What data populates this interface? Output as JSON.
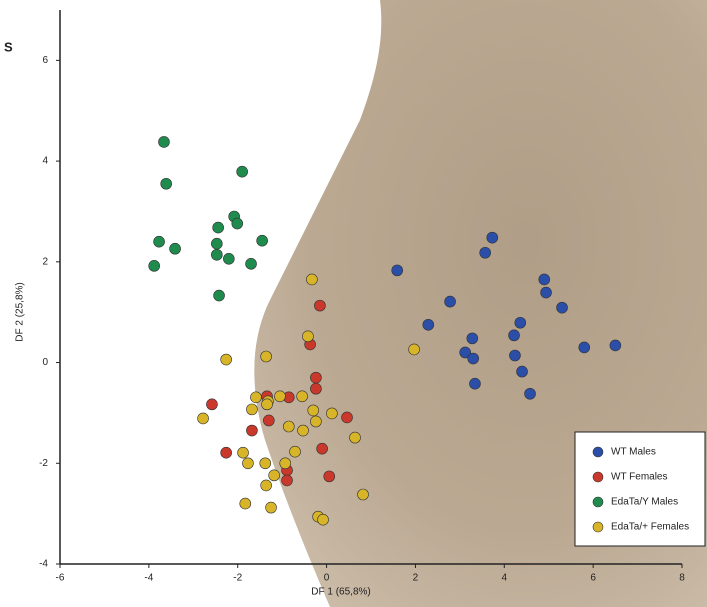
{
  "chart_data": {
    "type": "scatter",
    "panel_label": "S",
    "x_label": "DF 1 (65,8%)",
    "y_label": "DF 2 (25,8%)",
    "xlim": [
      -6,
      8
    ],
    "xticks": [
      -6,
      -4,
      -2,
      0,
      2,
      4,
      6,
      8
    ],
    "ylim": [
      -4,
      7
    ],
    "yticks": [
      -4,
      -2,
      0,
      2,
      4,
      6
    ],
    "legend": "lower right",
    "series": [
      {
        "name": "WT Males",
        "color": "#2b4ea8",
        "x": [
          1.59,
          3.73,
          3.57,
          2.78,
          2.29,
          3.28,
          3.12,
          3.3,
          3.34,
          4.36,
          4.22,
          4.24,
          4.4,
          4.58,
          4.9,
          4.94,
          5.3,
          5.8,
          6.5
        ],
        "y": [
          1.83,
          2.48,
          2.18,
          1.21,
          0.75,
          0.48,
          0.2,
          0.08,
          -0.42,
          0.79,
          0.54,
          0.14,
          -0.18,
          -0.62,
          1.65,
          1.39,
          1.09,
          0.3,
          0.34
        ]
      },
      {
        "name": "WT Females",
        "color": "#c9382b",
        "x": [
          -0.15,
          -0.37,
          -2.58,
          -0.24,
          -0.24,
          -0.85,
          -1.34,
          -1.68,
          -1.3,
          0.46,
          -2.26,
          -0.89,
          -0.1,
          -0.89,
          0.06
        ],
        "y": [
          1.13,
          0.36,
          -0.83,
          -0.3,
          -0.52,
          -0.69,
          -0.67,
          -1.35,
          -1.15,
          -1.09,
          -1.79,
          -2.14,
          -1.71,
          -2.34,
          -2.26
        ]
      },
      {
        "name": "EdaTa/Y Males",
        "color": "#1f8b4d",
        "x": [
          -3.66,
          -3.61,
          -1.9,
          -2.08,
          -2.01,
          -2.44,
          -3.77,
          -3.41,
          -2.47,
          -2.47,
          -2.2,
          -1.45,
          -1.7,
          -3.88,
          -2.42
        ],
        "y": [
          4.38,
          3.55,
          3.79,
          2.9,
          2.76,
          2.68,
          2.4,
          2.26,
          2.36,
          2.14,
          2.06,
          2.42,
          1.96,
          1.92,
          1.33
        ]
      },
      {
        "name": "EdaTa/+ Females",
        "color": "#d8b528",
        "x": [
          -0.33,
          -0.42,
          -2.26,
          -1.36,
          1.97,
          -1.59,
          -1.32,
          -1.68,
          -1.34,
          -1.05,
          -0.55,
          -0.3,
          0.12,
          -2.78,
          -0.85,
          -0.53,
          -0.24,
          0.64,
          -0.71,
          -1.88,
          -1.77,
          -1.38,
          -0.93,
          -1.18,
          -1.36,
          0.82,
          -1.83,
          -1.25,
          -0.19,
          -0.08
        ],
        "y": [
          1.65,
          0.52,
          0.06,
          0.12,
          0.26,
          -0.69,
          -0.77,
          -0.93,
          -0.83,
          -0.67,
          -0.67,
          -0.95,
          -1.01,
          -1.11,
          -1.27,
          -1.35,
          -1.17,
          -1.49,
          -1.77,
          -1.79,
          -2.0,
          -2.0,
          -2.0,
          -2.24,
          -2.44,
          -2.62,
          -2.8,
          -2.88,
          -3.06,
          -3.12
        ]
      }
    ]
  }
}
